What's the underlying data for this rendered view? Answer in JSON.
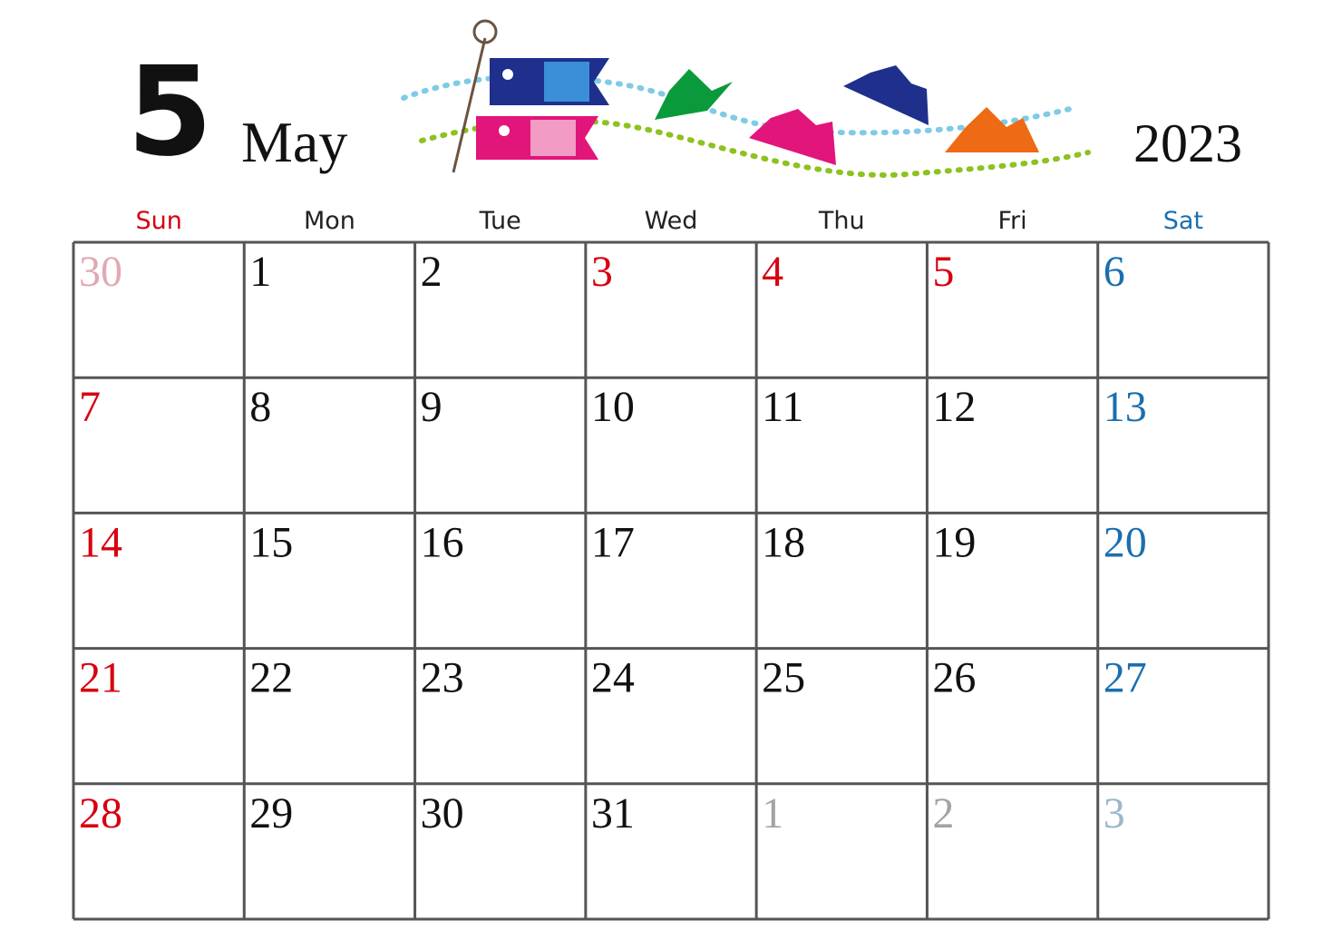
{
  "header": {
    "month_number": "5",
    "month_name": "May",
    "year": "2023"
  },
  "weekdays": [
    {
      "label": "Sun",
      "color": "#d7000f"
    },
    {
      "label": "Mon",
      "color": "#222222"
    },
    {
      "label": "Tue",
      "color": "#222222"
    },
    {
      "label": "Wed",
      "color": "#222222"
    },
    {
      "label": "Thu",
      "color": "#222222"
    },
    {
      "label": "Fri",
      "color": "#222222"
    },
    {
      "label": "Sat",
      "color": "#1a6fb0"
    }
  ],
  "weeks": [
    [
      {
        "day": "30",
        "color": "#e2a9b0"
      },
      {
        "day": "1",
        "color": "#111111"
      },
      {
        "day": "2",
        "color": "#111111"
      },
      {
        "day": "3",
        "color": "#d7000f"
      },
      {
        "day": "4",
        "color": "#d7000f"
      },
      {
        "day": "5",
        "color": "#d7000f"
      },
      {
        "day": "6",
        "color": "#1a6fb0"
      }
    ],
    [
      {
        "day": "7",
        "color": "#d7000f"
      },
      {
        "day": "8",
        "color": "#111111"
      },
      {
        "day": "9",
        "color": "#111111"
      },
      {
        "day": "10",
        "color": "#111111"
      },
      {
        "day": "11",
        "color": "#111111"
      },
      {
        "day": "12",
        "color": "#111111"
      },
      {
        "day": "13",
        "color": "#1a6fb0"
      }
    ],
    [
      {
        "day": "14",
        "color": "#d7000f"
      },
      {
        "day": "15",
        "color": "#111111"
      },
      {
        "day": "16",
        "color": "#111111"
      },
      {
        "day": "17",
        "color": "#111111"
      },
      {
        "day": "18",
        "color": "#111111"
      },
      {
        "day": "19",
        "color": "#111111"
      },
      {
        "day": "20",
        "color": "#1a6fb0"
      }
    ],
    [
      {
        "day": "21",
        "color": "#d7000f"
      },
      {
        "day": "22",
        "color": "#111111"
      },
      {
        "day": "23",
        "color": "#111111"
      },
      {
        "day": "24",
        "color": "#111111"
      },
      {
        "day": "25",
        "color": "#111111"
      },
      {
        "day": "26",
        "color": "#111111"
      },
      {
        "day": "27",
        "color": "#1a6fb0"
      }
    ],
    [
      {
        "day": "28",
        "color": "#d7000f"
      },
      {
        "day": "29",
        "color": "#111111"
      },
      {
        "day": "30",
        "color": "#111111"
      },
      {
        "day": "31",
        "color": "#111111"
      },
      {
        "day": "1",
        "color": "#a3a3a3"
      },
      {
        "day": "2",
        "color": "#a3a3a3"
      },
      {
        "day": "3",
        "color": "#9bb8c9"
      }
    ]
  ]
}
